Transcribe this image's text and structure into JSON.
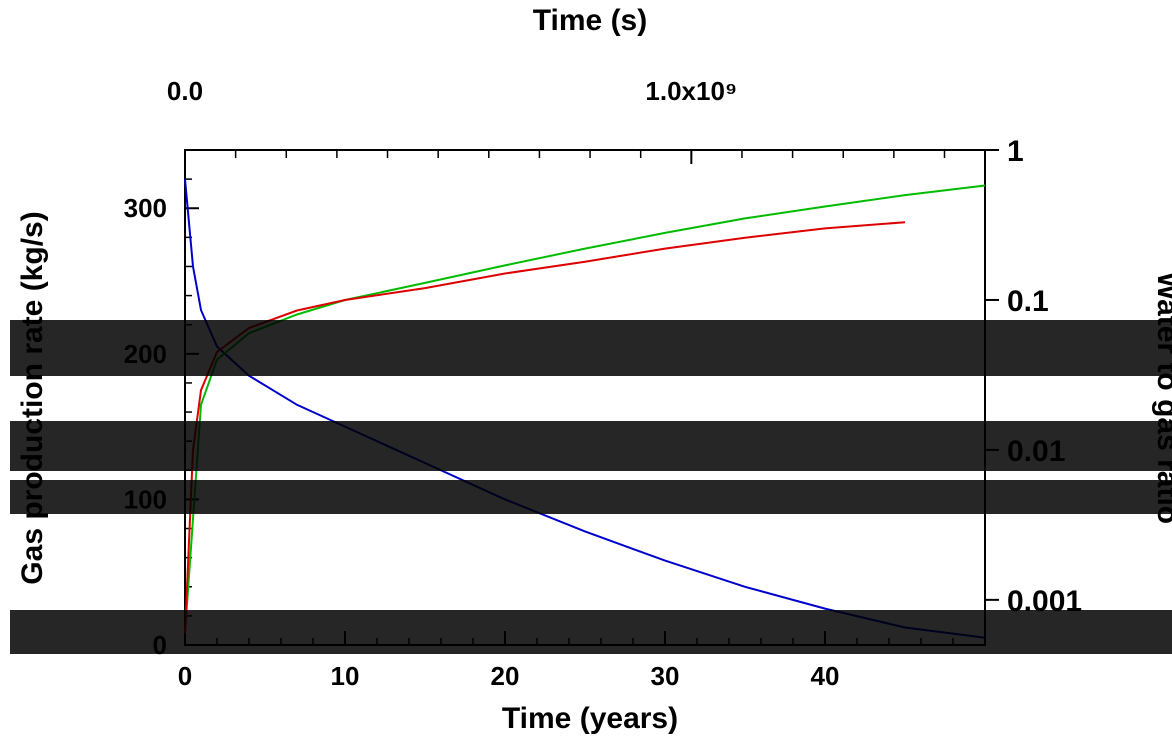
{
  "chart_data": {
    "type": "line",
    "title": "",
    "x_bottom": {
      "label": "Time (years)",
      "range": [
        0,
        50
      ],
      "ticks": [
        0,
        10,
        20,
        30,
        40
      ]
    },
    "x_top": {
      "label": "Time (s)",
      "range_seconds": [
        0,
        1580000000.0
      ],
      "tick_labels": [
        "0.0",
        "1.0x10⁹"
      ]
    },
    "y_left": {
      "label": "Gas production rate (kg/s)",
      "range": [
        0,
        340
      ],
      "ticks": [
        0,
        100,
        200,
        300
      ],
      "tick_labels": [
        "0",
        "100",
        "200",
        "300"
      ]
    },
    "y_right": {
      "label": "Water to gas ratio",
      "scale": "log",
      "range": [
        0.0005,
        1
      ],
      "ticks": [
        0.001,
        0.01,
        0.1,
        1
      ],
      "tick_labels": [
        "0.001",
        "0.01",
        "0.1",
        "1"
      ]
    },
    "series": [
      {
        "name": "",
        "color": "#0000cc",
        "axis": "left",
        "points": [
          [
            0,
            320
          ],
          [
            0.5,
            260
          ],
          [
            1,
            230
          ],
          [
            2,
            205
          ],
          [
            4,
            185
          ],
          [
            7,
            165
          ],
          [
            10,
            150
          ],
          [
            15,
            125
          ],
          [
            20,
            100
          ],
          [
            25,
            78
          ],
          [
            30,
            58
          ],
          [
            35,
            40
          ],
          [
            40,
            25
          ],
          [
            45,
            12
          ],
          [
            50,
            5
          ]
        ]
      },
      {
        "name": "",
        "color": "#00bb00",
        "axis": "right",
        "points": [
          [
            0,
            0.0006
          ],
          [
            1,
            0.02
          ],
          [
            2,
            0.04
          ],
          [
            4,
            0.06
          ],
          [
            7,
            0.08
          ],
          [
            10,
            0.1
          ],
          [
            15,
            0.13
          ],
          [
            20,
            0.17
          ],
          [
            25,
            0.22
          ],
          [
            30,
            0.28
          ],
          [
            35,
            0.35
          ],
          [
            40,
            0.42
          ],
          [
            45,
            0.5
          ],
          [
            50,
            0.58
          ]
        ]
      },
      {
        "name": "",
        "color": "#dd0000",
        "axis": "right",
        "points": [
          [
            0,
            0.0006
          ],
          [
            0.5,
            0.01
          ],
          [
            1,
            0.025
          ],
          [
            2,
            0.045
          ],
          [
            4,
            0.065
          ],
          [
            7,
            0.085
          ],
          [
            10,
            0.1
          ],
          [
            15,
            0.12
          ],
          [
            20,
            0.15
          ],
          [
            25,
            0.18
          ],
          [
            30,
            0.22
          ],
          [
            35,
            0.26
          ],
          [
            40,
            0.3
          ],
          [
            45,
            0.33
          ]
        ]
      }
    ],
    "grid": false,
    "legend": "none"
  }
}
